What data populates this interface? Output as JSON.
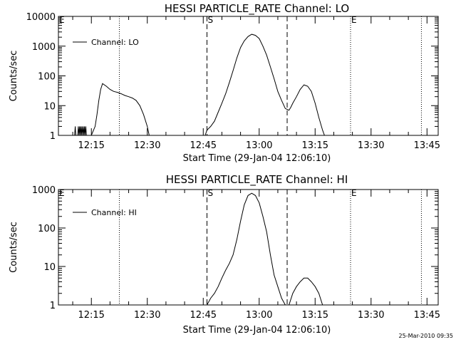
{
  "chart_data": [
    {
      "type": "line",
      "title": "HESSI PARTICLE_RATE Channel: LO",
      "xlabel": "Start Time (29-Jan-04 12:06:10)",
      "ylabel": "Counts/sec",
      "y_scale": "log",
      "ylim": [
        1,
        10000
      ],
      "xlim": [
        "12:06:10",
        "13:48:00"
      ],
      "x_ticks": [
        "12:15",
        "12:30",
        "12:45",
        "13:00",
        "13:15",
        "13:30",
        "13:45"
      ],
      "y_ticks": [
        "1",
        "10",
        "100",
        "1000",
        "10000"
      ],
      "legend": "top-left",
      "markers": {
        "start": "S",
        "end": "E"
      },
      "annotations": [
        "E",
        "S",
        "E"
      ],
      "dotted_lines": [
        "12:22:30",
        "13:24:30",
        "13:43:30"
      ],
      "dashed_lines": [
        "12:46:00",
        "13:07:30"
      ],
      "series": [
        {
          "name": "Channel: LO",
          "x": [
            "12:10:30",
            "12:10:40",
            "12:10:50",
            "12:11:00",
            "12:11:20",
            "12:11:30",
            "12:11:40",
            "12:11:50",
            "12:12:00",
            "12:12:10",
            "12:12:20",
            "12:12:30",
            "12:12:40",
            "12:12:50",
            "12:13:00",
            "12:13:10",
            "12:13:20",
            "12:13:30",
            "12:13:40",
            "12:14:00",
            "12:15:00",
            "12:16:00",
            "12:16:30",
            "12:17:00",
            "12:17:30",
            "12:18:00",
            "12:19:00",
            "12:20:00",
            "12:21:00",
            "12:22:00",
            "12:23:00",
            "12:24:00",
            "12:25:00",
            "12:26:00",
            "12:27:00",
            "12:28:00",
            "12:29:00",
            "12:30:00",
            "12:30:30",
            "12:45:30",
            "12:46:00",
            "12:47:00",
            "12:48:00",
            "12:49:00",
            "12:50:00",
            "12:51:00",
            "12:52:00",
            "12:53:00",
            "12:54:00",
            "12:55:00",
            "12:56:00",
            "12:57:00",
            "12:58:00",
            "12:59:00",
            "13:00:00",
            "13:01:00",
            "13:02:00",
            "13:03:00",
            "13:04:00",
            "13:05:00",
            "13:06:00",
            "13:07:00",
            "13:08:00",
            "13:08:30",
            "13:09:00",
            "13:10:00",
            "13:11:00",
            "13:12:00",
            "13:13:00",
            "13:14:00",
            "13:15:00",
            "13:16:00",
            "13:17:00",
            "13:17:30",
            "13:18:00"
          ],
          "values": [
            1,
            2,
            1,
            1,
            1,
            2,
            1,
            2,
            1,
            2,
            1,
            2,
            1,
            2,
            1,
            2,
            1,
            2,
            1,
            1,
            1,
            2,
            5,
            15,
            35,
            55,
            45,
            35,
            30,
            28,
            25,
            22,
            20,
            18,
            15,
            10,
            5,
            2,
            1,
            1,
            1.5,
            2,
            3,
            6,
            12,
            25,
            60,
            150,
            400,
            900,
            1500,
            2100,
            2500,
            2300,
            1800,
            1000,
            500,
            200,
            80,
            30,
            15,
            8,
            7,
            9,
            12,
            20,
            35,
            50,
            45,
            30,
            12,
            4,
            1.5,
            1,
            1
          ]
        }
      ]
    },
    {
      "type": "line",
      "title": "HESSI PARTICLE_RATE Channel: HI",
      "xlabel": "Start Time (29-Jan-04 12:06:10)",
      "ylabel": "Counts/sec",
      "y_scale": "log",
      "ylim": [
        1,
        1000
      ],
      "xlim": [
        "12:06:10",
        "13:48:00"
      ],
      "x_ticks": [
        "12:15",
        "12:30",
        "12:45",
        "13:00",
        "13:15",
        "13:30",
        "13:45"
      ],
      "y_ticks": [
        "1",
        "10",
        "100",
        "1000"
      ],
      "legend": "top-left",
      "markers": {
        "start": "S",
        "end": "E"
      },
      "annotations": [
        "E",
        "S",
        "E"
      ],
      "dotted_lines": [
        "12:22:30",
        "13:24:30",
        "13:43:30"
      ],
      "dashed_lines": [
        "12:46:00",
        "13:07:30"
      ],
      "series": [
        {
          "name": "Channel: HI",
          "x": [
            "12:46:00",
            "12:47:00",
            "12:48:00",
            "12:49:00",
            "12:50:00",
            "12:51:00",
            "12:52:00",
            "12:53:00",
            "12:54:00",
            "12:55:00",
            "12:56:00",
            "12:57:00",
            "12:58:00",
            "12:59:00",
            "13:00:00",
            "13:01:00",
            "13:02:00",
            "13:03:00",
            "13:04:00",
            "13:05:00",
            "13:06:00",
            "13:07:00",
            "13:08:00",
            "13:09:00",
            "13:10:00",
            "13:11:00",
            "13:12:00",
            "13:13:00",
            "13:14:00",
            "13:15:00",
            "13:16:00",
            "13:17:00"
          ],
          "values": [
            1,
            1.5,
            2,
            3,
            5,
            8,
            12,
            20,
            50,
            150,
            400,
            700,
            800,
            700,
            450,
            200,
            80,
            20,
            6,
            3,
            1.5,
            1,
            1,
            2,
            3,
            4,
            5,
            5,
            4,
            3,
            2,
            1
          ]
        }
      ]
    }
  ],
  "timestamp": "25-Mar-2010 09:35"
}
